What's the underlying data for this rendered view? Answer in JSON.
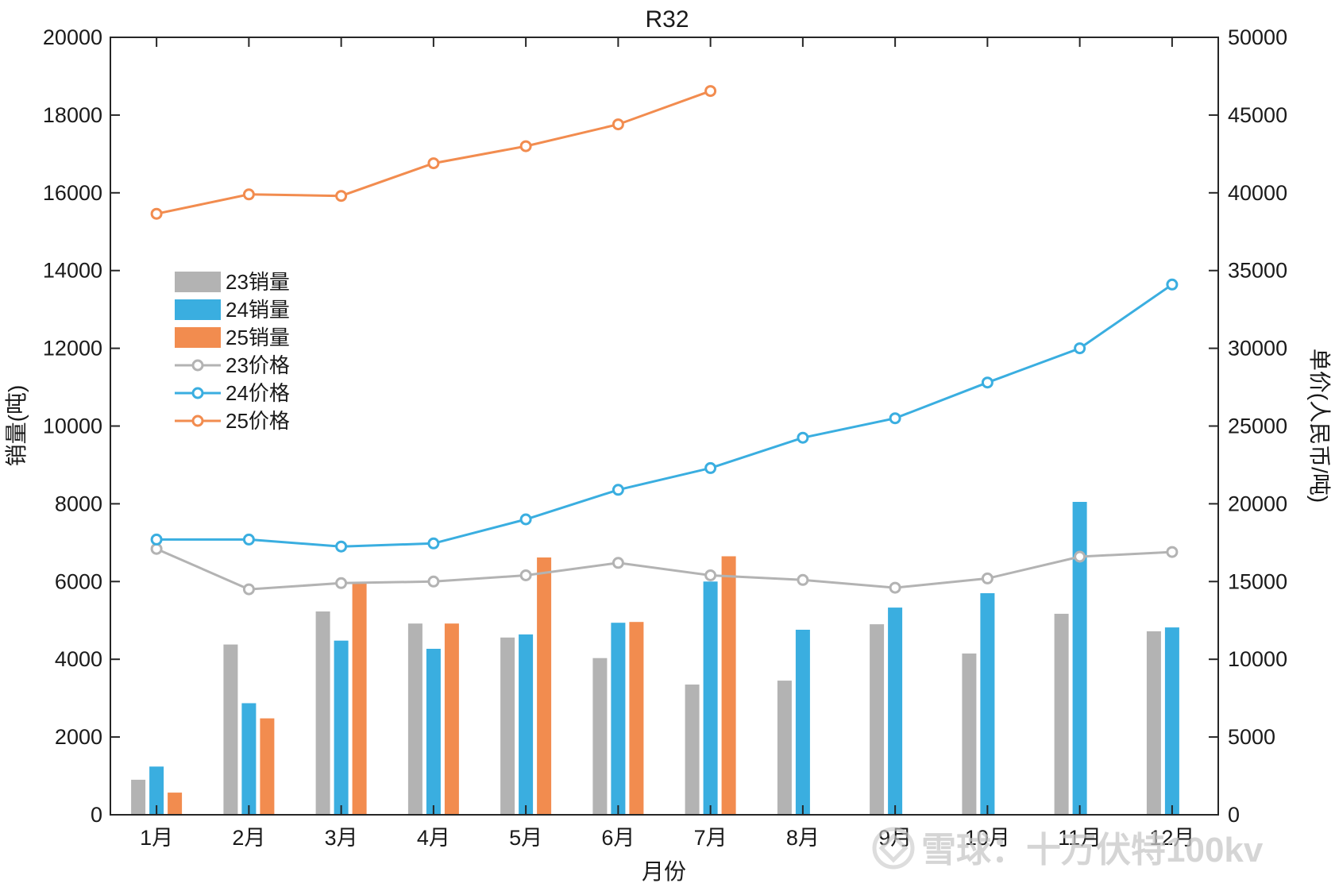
{
  "chart_data": {
    "type": "bar",
    "title": "R32",
    "xlabel": "月份",
    "ylabel_left": "销量(吨)",
    "ylabel_right": "单价(人民币/吨)",
    "categories": [
      "1月",
      "2月",
      "3月",
      "4月",
      "5月",
      "6月",
      "7月",
      "8月",
      "9月",
      "10月",
      "11月",
      "12月"
    ],
    "ylim_left": [
      0,
      20000
    ],
    "yticks_left": [
      "0",
      "2000",
      "4000",
      "6000",
      "8000",
      "10000",
      "12000",
      "14000",
      "16000",
      "18000",
      "20000"
    ],
    "ylim_right": [
      0,
      50000
    ],
    "yticks_right": [
      "0",
      "5000",
      "10000",
      "15000",
      "20000",
      "25000",
      "30000",
      "35000",
      "40000",
      "45000",
      "50000"
    ],
    "grid": false,
    "legend_position": "upper-left",
    "bar_series": [
      {
        "name": "23销量",
        "color": "#b3b3b3",
        "axis": "left",
        "values": [
          900,
          4380,
          5230,
          4920,
          4560,
          4030,
          3350,
          3450,
          4900,
          4150,
          5170,
          4720
        ]
      },
      {
        "name": "24销量",
        "color": "#3aaee0",
        "axis": "left",
        "values": [
          1240,
          2870,
          4480,
          4270,
          4640,
          4940,
          6000,
          4760,
          5330,
          5700,
          8050,
          4820
        ]
      },
      {
        "name": "25销量",
        "color": "#f28c4f",
        "axis": "left",
        "values": [
          570,
          2480,
          5950,
          4920,
          6620,
          4960,
          6650,
          null,
          null,
          null,
          null,
          null
        ]
      }
    ],
    "line_series": [
      {
        "name": "23价格",
        "color": "#b3b3b3",
        "axis": "right",
        "values": [
          17100,
          14500,
          14900,
          15000,
          15400,
          16200,
          15400,
          15100,
          14600,
          15200,
          16600,
          16900
        ]
      },
      {
        "name": "24价格",
        "color": "#3aaee0",
        "axis": "right",
        "values": [
          17700,
          17700,
          17250,
          17450,
          19000,
          20900,
          22300,
          24250,
          25500,
          27800,
          30000,
          34100
        ]
      },
      {
        "name": "25价格",
        "color": "#f28c4f",
        "axis": "right",
        "values": [
          38650,
          39900,
          39800,
          41900,
          43000,
          44400,
          46550,
          null,
          null,
          null,
          null,
          null
        ]
      }
    ]
  },
  "watermark": {
    "text": "雪球：十万伏特100kv",
    "icon": "snowball-logo-icon"
  }
}
